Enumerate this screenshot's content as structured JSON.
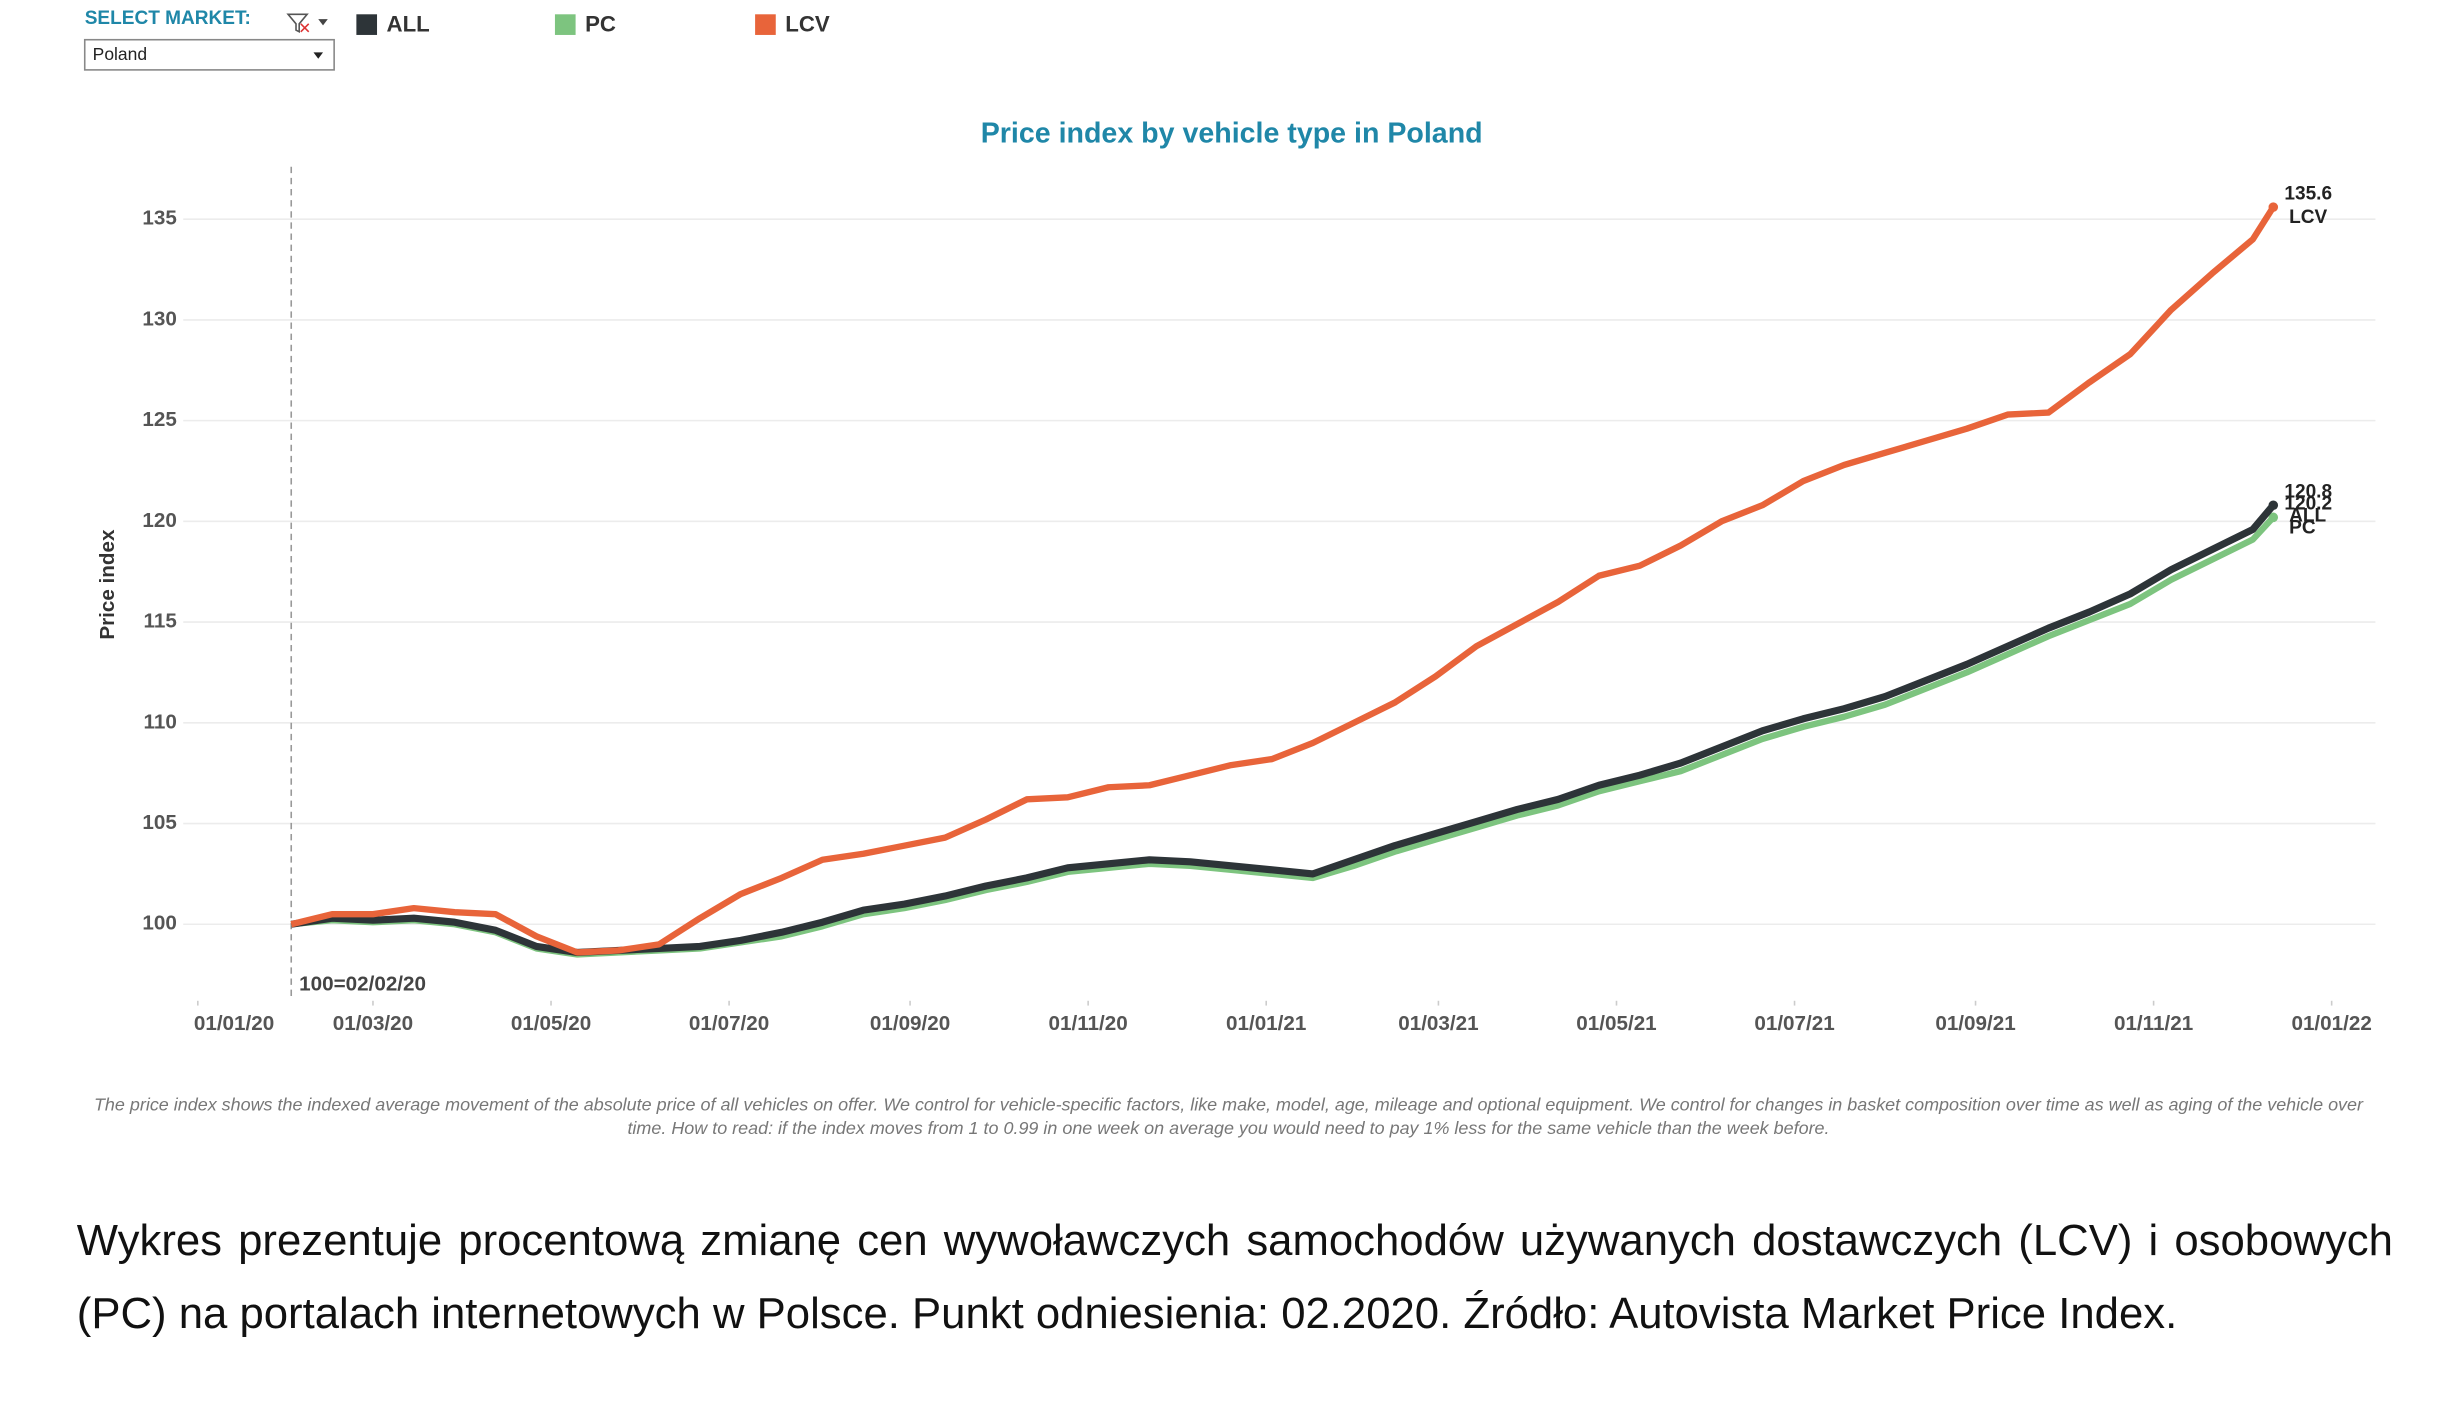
{
  "controls": {
    "select_label": "SELECT MARKET:",
    "selected": "Poland"
  },
  "chart_data": {
    "type": "line",
    "title": "Price index by vehicle type in Poland",
    "y_label": "Price index",
    "x": [
      "2020-02-02",
      "2020-02-16",
      "2020-03-01",
      "2020-03-15",
      "2020-03-29",
      "2020-04-12",
      "2020-04-26",
      "2020-05-10",
      "2020-05-24",
      "2020-06-07",
      "2020-06-21",
      "2020-07-05",
      "2020-07-19",
      "2020-08-02",
      "2020-08-16",
      "2020-08-30",
      "2020-09-13",
      "2020-09-27",
      "2020-10-11",
      "2020-10-25",
      "2020-11-08",
      "2020-11-22",
      "2020-12-06",
      "2020-12-20",
      "2021-01-03",
      "2021-01-17",
      "2021-01-31",
      "2021-02-14",
      "2021-02-28",
      "2021-03-14",
      "2021-03-28",
      "2021-04-11",
      "2021-04-25",
      "2021-05-09",
      "2021-05-23",
      "2021-06-06",
      "2021-06-20",
      "2021-07-04",
      "2021-07-18",
      "2021-08-01",
      "2021-08-15",
      "2021-08-29",
      "2021-09-12",
      "2021-09-26",
      "2021-10-10",
      "2021-10-24",
      "2021-11-07",
      "2021-11-21",
      "2021-12-05",
      "2021-12-12"
    ],
    "series": [
      {
        "name": "ALL",
        "color": "#2d3438",
        "values": [
          100.0,
          100.3,
          100.2,
          100.3,
          100.1,
          99.7,
          98.9,
          98.6,
          98.7,
          98.8,
          98.9,
          99.2,
          99.6,
          100.1,
          100.7,
          101.0,
          101.4,
          101.9,
          102.3,
          102.8,
          103.0,
          103.2,
          103.1,
          102.9,
          102.7,
          102.5,
          103.2,
          103.9,
          104.5,
          105.1,
          105.7,
          106.2,
          106.9,
          107.4,
          108.0,
          108.8,
          109.6,
          110.2,
          110.7,
          111.3,
          112.1,
          112.9,
          113.8,
          114.7,
          115.5,
          116.4,
          117.6,
          118.6,
          119.6,
          120.8
        ]
      },
      {
        "name": "PC",
        "color": "#7dc47f",
        "values": [
          100.0,
          100.2,
          100.1,
          100.2,
          100.0,
          99.6,
          98.8,
          98.5,
          98.6,
          98.7,
          98.8,
          99.1,
          99.4,
          99.9,
          100.5,
          100.8,
          101.2,
          101.7,
          102.1,
          102.6,
          102.8,
          103.0,
          102.9,
          102.7,
          102.5,
          102.3,
          102.9,
          103.6,
          104.2,
          104.8,
          105.4,
          105.9,
          106.6,
          107.1,
          107.6,
          108.4,
          109.2,
          109.8,
          110.3,
          110.9,
          111.7,
          112.5,
          113.4,
          114.3,
          115.1,
          115.9,
          117.1,
          118.1,
          119.1,
          120.2
        ]
      },
      {
        "name": "LCV",
        "color": "#e8643a",
        "values": [
          100.0,
          100.5,
          100.5,
          100.8,
          100.6,
          100.5,
          99.4,
          98.6,
          98.7,
          99.0,
          100.3,
          101.5,
          102.3,
          103.2,
          103.5,
          103.9,
          104.3,
          105.2,
          106.2,
          106.3,
          106.8,
          106.9,
          107.4,
          107.9,
          108.2,
          109.0,
          110.0,
          111.0,
          112.3,
          113.8,
          114.9,
          116.0,
          117.3,
          117.8,
          118.8,
          120.0,
          120.8,
          122.0,
          122.8,
          123.4,
          124.0,
          124.6,
          125.3,
          125.4,
          126.9,
          128.3,
          130.5,
          132.3,
          134.0,
          135.6
        ]
      }
    ],
    "xlim": [
      "2019-12-27",
      "2022-01-16"
    ],
    "xticks": [
      {
        "value": "2020-01-01",
        "label": "01/01/20"
      },
      {
        "value": "2020-03-01",
        "label": "01/03/20"
      },
      {
        "value": "2020-05-01",
        "label": "01/05/20"
      },
      {
        "value": "2020-07-01",
        "label": "01/07/20"
      },
      {
        "value": "2020-09-01",
        "label": "01/09/20"
      },
      {
        "value": "2020-11-01",
        "label": "01/11/20"
      },
      {
        "value": "2021-01-01",
        "label": "01/01/21"
      },
      {
        "value": "2021-03-01",
        "label": "01/03/21"
      },
      {
        "value": "2021-05-01",
        "label": "01/05/21"
      },
      {
        "value": "2021-07-01",
        "label": "01/07/21"
      },
      {
        "value": "2021-09-01",
        "label": "01/09/21"
      },
      {
        "value": "2021-11-01",
        "label": "01/11/21"
      },
      {
        "value": "2022-01-01",
        "label": "01/01/22"
      }
    ],
    "ylim": [
      96.2,
      137.6
    ],
    "yticks": [
      100,
      105,
      110,
      115,
      120,
      125,
      130,
      135
    ],
    "grid": true,
    "reference_line": {
      "x": "2020-02-02",
      "label": "100=02/02/20"
    },
    "footnote": "The price index shows the indexed average movement of the absolute price of all vehicles on offer. We control for vehicle-specific factors, like make, model, age, mileage and optional equipment. We control for changes in basket composition over time as well as aging of the vehicle over time. How to read: if the index moves from 1 to 0.99 in one week on average you would need to pay 1% less for the same vehicle than the week before."
  },
  "caption": "Wykres prezentuje procentową zmianę cen wywoławczych samochodów używanych dostawczych (LCV) i osobowych (PC) na portalach internetowych w Polsce. Punkt odniesienia: 02.2020. Źródło: Autovista Market Price Index."
}
